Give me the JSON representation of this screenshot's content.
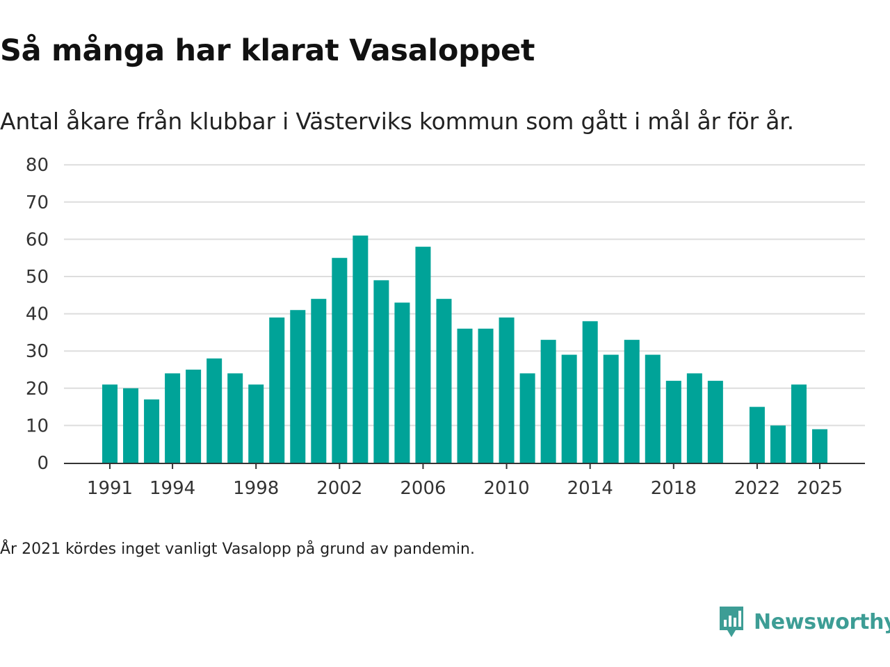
{
  "header": {
    "title": "Så många har klarat Vasaloppet",
    "subtitle": "Antal åkare från klubbar i Västerviks kommun som gått i mål år för år."
  },
  "note": "År 2021 kördes inget vanligt Vasalopp på grund av pandemin.",
  "brand": {
    "name": "Newsworthy",
    "icon": "newsworthy-logo-icon",
    "color": "#3d9d95"
  },
  "colors": {
    "bar": "#00a398",
    "grid": "#dddddd",
    "axis": "#333333"
  },
  "chart_data": {
    "type": "bar",
    "title": "Så många har klarat Vasaloppet",
    "subtitle": "Antal åkare från klubbar i Västerviks kommun som gått i mål år för år.",
    "xlabel": "",
    "ylabel": "",
    "ylim": [
      0,
      80
    ],
    "yticks": [
      0,
      10,
      20,
      30,
      40,
      50,
      60,
      70,
      80
    ],
    "categories": [
      1991,
      1992,
      1993,
      1994,
      1995,
      1996,
      1997,
      1998,
      1999,
      2000,
      2001,
      2002,
      2003,
      2004,
      2005,
      2006,
      2007,
      2008,
      2009,
      2010,
      2011,
      2012,
      2013,
      2014,
      2015,
      2016,
      2017,
      2018,
      2019,
      2020,
      2021,
      2022,
      2023,
      2024,
      2025
    ],
    "values": [
      21,
      20,
      17,
      24,
      25,
      28,
      24,
      21,
      39,
      41,
      44,
      55,
      61,
      49,
      43,
      58,
      44,
      36,
      36,
      39,
      24,
      33,
      29,
      38,
      29,
      33,
      29,
      22,
      24,
      22,
      null,
      15,
      10,
      21,
      9
    ],
    "xticks": [
      "1991",
      "1994",
      "1998",
      "2002",
      "2006",
      "2010",
      "2014",
      "2018",
      "2022",
      "2025"
    ],
    "grid": true,
    "legend": "none"
  }
}
